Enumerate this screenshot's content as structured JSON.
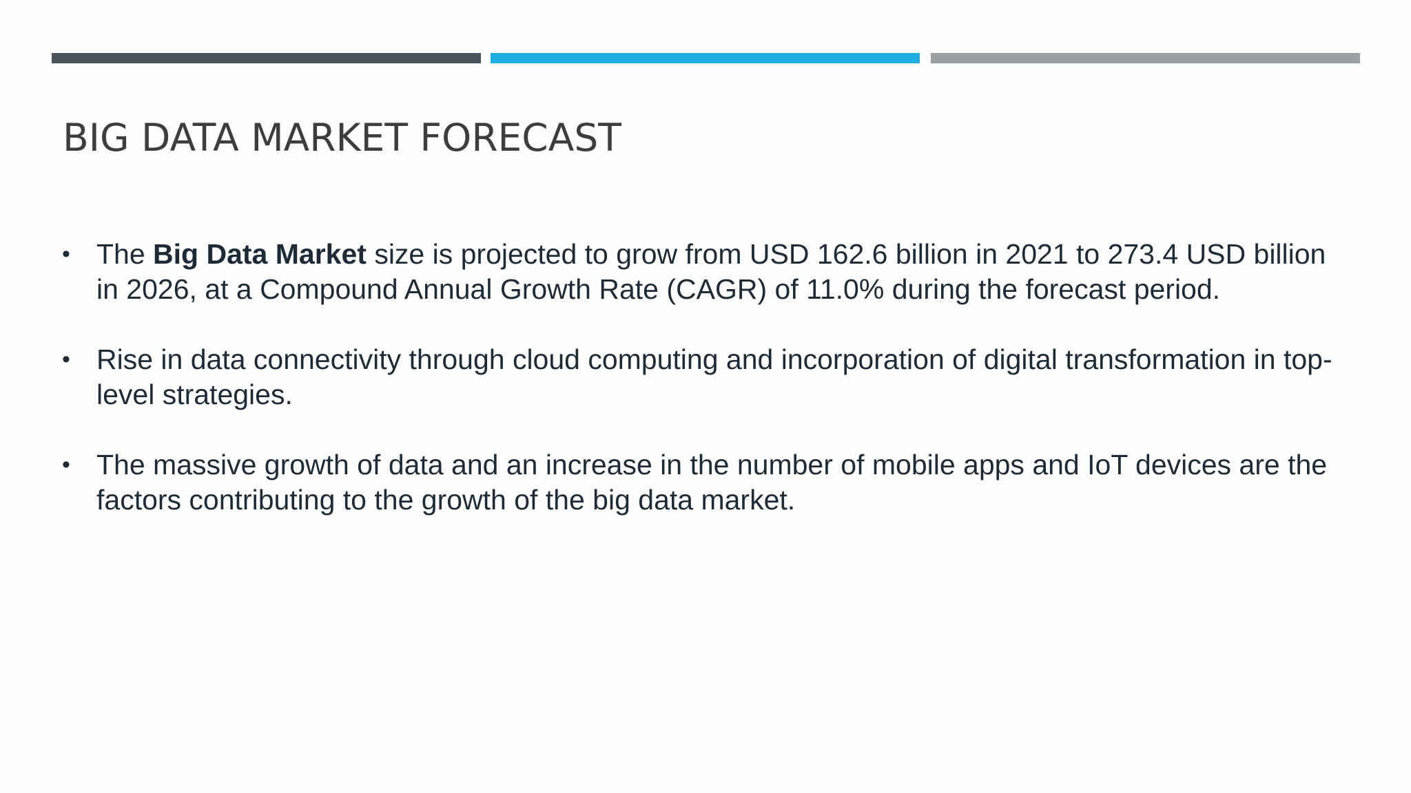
{
  "colors": {
    "bar_dark": "#4a535a",
    "bar_blue": "#1eade3",
    "bar_gray": "#9aa0a4",
    "title": "#3d3d3d",
    "body_text": "#1e2b37"
  },
  "slide": {
    "title": "BIG DATA MARKET FORECAST",
    "bullet_glyph": "•",
    "bullets": [
      {
        "prefix": "The ",
        "bold": "Big Data Market",
        "suffix": " size is projected to grow from USD 162.6 billion in 2021 to 273.4 USD billion in 2026, at a Compound Annual Growth Rate (CAGR) of 11.0% during the forecast period."
      },
      {
        "text": "Rise in data connectivity through cloud computing and incorporation of digital transformation in top-level strategies."
      },
      {
        "text": "The massive growth of data and an increase in the number of mobile apps and IoT devices are the factors contributing to the growth of the big data market."
      }
    ]
  }
}
